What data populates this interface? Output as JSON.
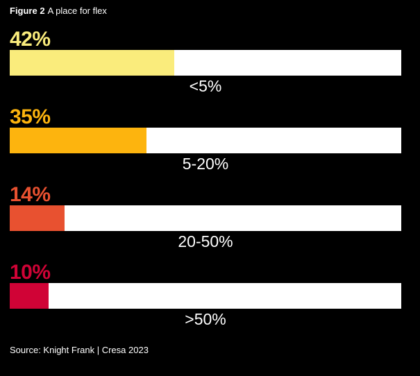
{
  "header": {
    "figure_label": "Figure 2",
    "title": "A place for flex"
  },
  "chart_data": {
    "type": "bar",
    "orientation": "horizontal",
    "title": "Figure 2 A place for flex",
    "categories": [
      "<5%",
      "5-20%",
      "20-50%",
      ">50%"
    ],
    "values": [
      42,
      35,
      14,
      10
    ],
    "value_labels": [
      "42%",
      "35%",
      "14%",
      "10%"
    ],
    "bar_colors": [
      "#FAEC7C",
      "#FDB40E",
      "#E85130",
      "#D00336"
    ],
    "track_color": "#FFFFFF",
    "background_color": "#000000",
    "label_color": "#FFFFFF",
    "xlim": [
      0,
      100
    ],
    "grid": false,
    "legend": false
  },
  "footer": {
    "source": "Source: Knight Frank | Cresa 2023"
  }
}
